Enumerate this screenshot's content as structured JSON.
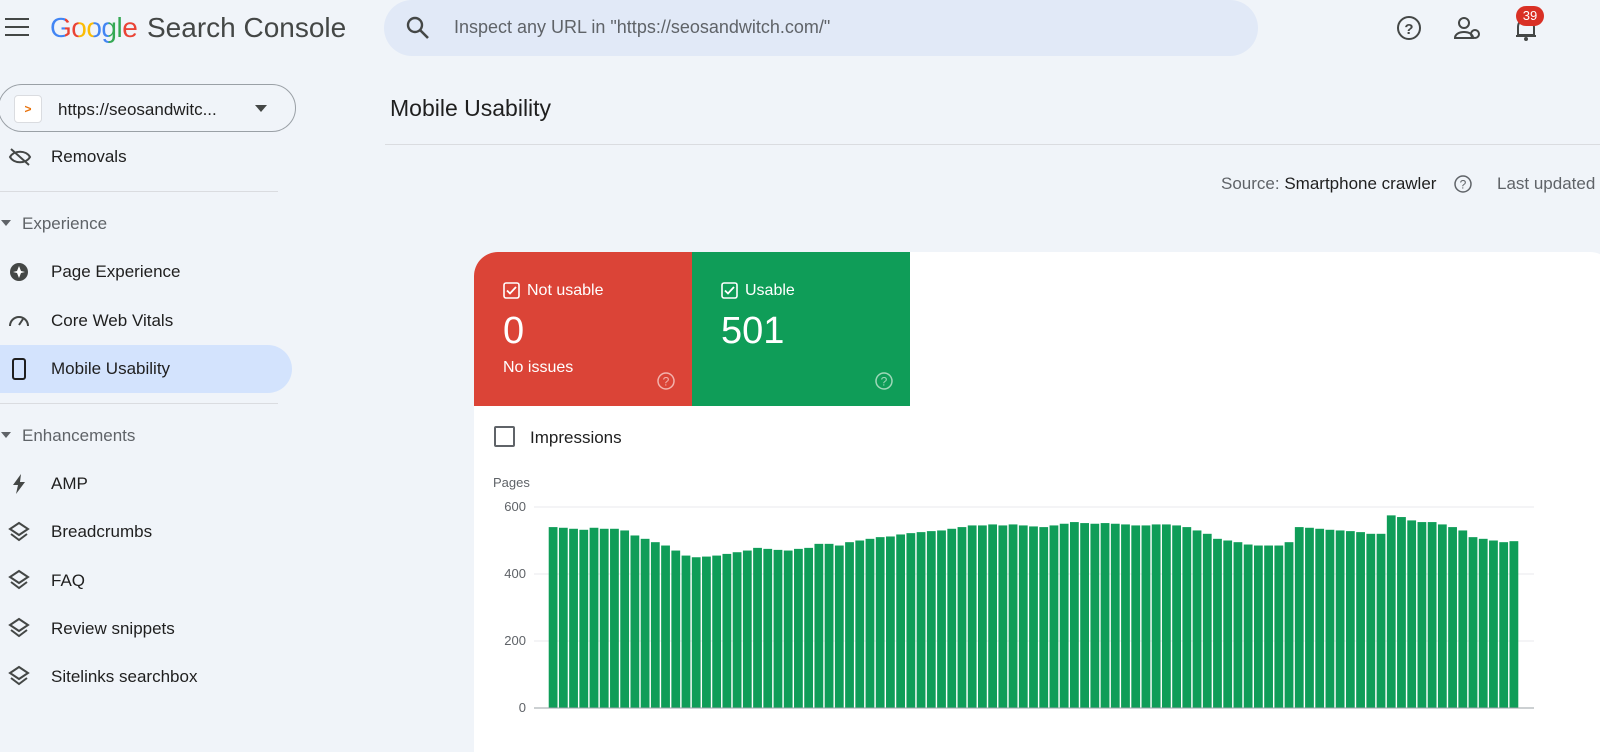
{
  "header": {
    "logo_brand": "Google",
    "logo_product": "Search Console",
    "search_placeholder": "Inspect any URL in \"https://seosandwitch.com/\"",
    "notification_count": "39"
  },
  "property": "https://seosandwitc...",
  "sidebar": {
    "removals": "Removals",
    "sections": [
      {
        "title": "Experience",
        "items": [
          "Page Experience",
          "Core Web Vitals",
          "Mobile Usability"
        ]
      },
      {
        "title": "Enhancements",
        "items": [
          "AMP",
          "Breadcrumbs",
          "FAQ",
          "Review snippets",
          "Sitelinks searchbox"
        ]
      }
    ]
  },
  "page": {
    "title": "Mobile Usability",
    "source_label": "Source:",
    "source_value": "Smartphone crawler",
    "last_updated": "Last updated"
  },
  "cards": [
    {
      "label": "Not usable",
      "value": 0,
      "note": "No issues"
    },
    {
      "label": "Usable",
      "value": 501
    }
  ],
  "impressions_toggle": "Impressions",
  "chart_data": {
    "type": "bar",
    "y_label": "Pages",
    "color": "#0f9d58",
    "ylim": [
      0,
      600
    ],
    "yticks": [
      0,
      200,
      400,
      600
    ],
    "grid": true,
    "values": [
      540,
      538,
      535,
      532,
      538,
      535,
      535,
      530,
      515,
      505,
      495,
      485,
      470,
      455,
      450,
      452,
      455,
      460,
      465,
      470,
      478,
      475,
      472,
      470,
      475,
      478,
      490,
      490,
      485,
      495,
      500,
      505,
      510,
      512,
      518,
      522,
      525,
      528,
      530,
      535,
      540,
      545,
      545,
      548,
      545,
      548,
      545,
      542,
      540,
      545,
      550,
      555,
      552,
      550,
      552,
      550,
      548,
      545,
      545,
      548,
      548,
      545,
      540,
      530,
      520,
      505,
      500,
      495,
      488,
      485,
      485,
      485,
      495,
      540,
      538,
      535,
      532,
      530,
      528,
      525,
      520,
      520,
      575,
      570,
      560,
      555,
      555,
      548,
      540,
      530,
      510,
      505,
      500,
      495,
      498
    ]
  }
}
